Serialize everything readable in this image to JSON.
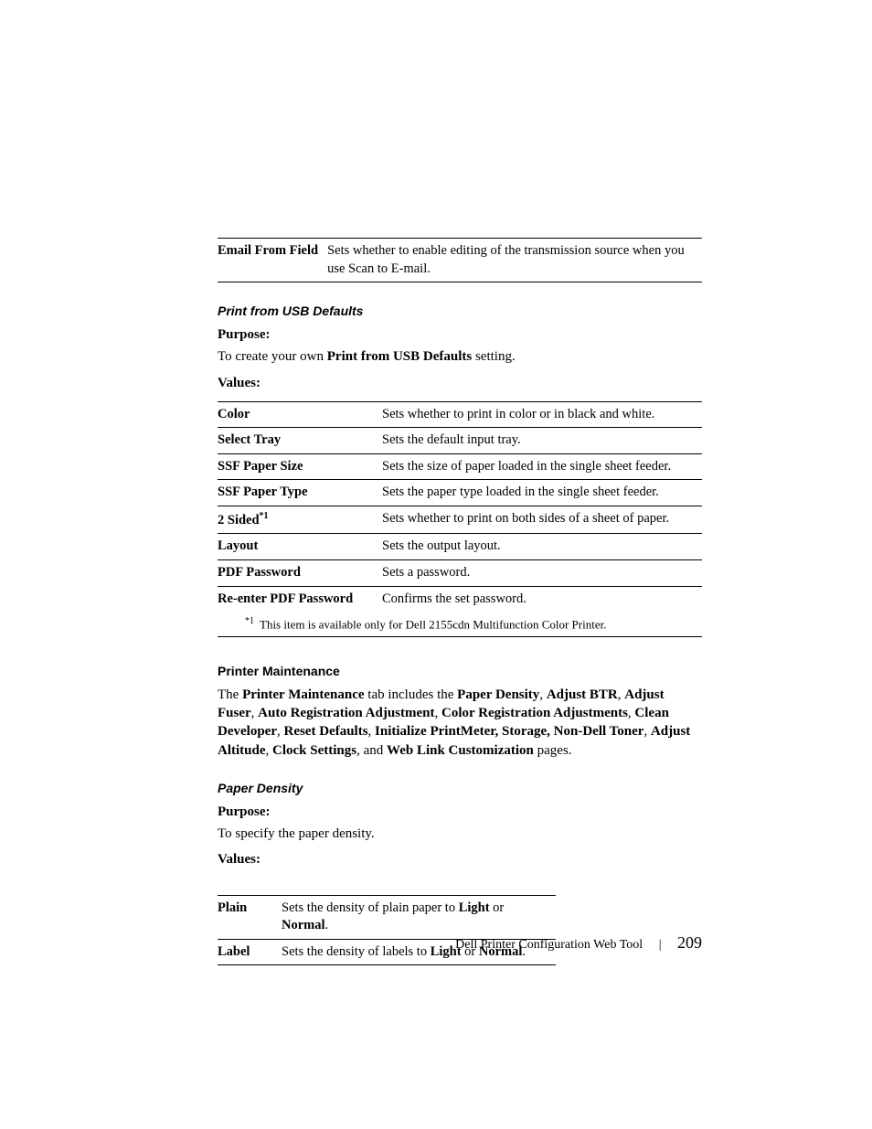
{
  "topTable": {
    "rows": [
      {
        "key": "Email From Field",
        "val": "Sets whether to enable editing of the transmission source when you use Scan to E-mail."
      }
    ]
  },
  "sectionUSB": {
    "title": "Print from USB Defaults",
    "purposeLabel": "Purpose:",
    "purposeText_pre": "To create your own ",
    "purposeText_bold": "Print from USB Defaults",
    "purposeText_post": " setting.",
    "valuesLabel": "Values:",
    "rows": [
      {
        "key": "Color",
        "val": "Sets whether to print in color or in black and white."
      },
      {
        "key": "Select Tray",
        "val": "Sets the default input tray."
      },
      {
        "key": "SSF Paper Size",
        "val": "Sets the size of paper loaded in the single sheet feeder."
      },
      {
        "key": "SSF Paper Type",
        "val": "Sets the paper type loaded in the single sheet feeder."
      },
      {
        "key": "2 Sided",
        "sup": "*1",
        "val": "Sets whether to print on both sides of a sheet of paper."
      },
      {
        "key": "Layout",
        "val": "Sets the output layout."
      },
      {
        "key": "PDF Password",
        "val": "Sets a password."
      },
      {
        "key": "Re-enter PDF Password",
        "val": "Confirms the set password."
      }
    ],
    "footnoteMarker": "*1",
    "footnoteText": "This item is available only for Dell 2155cdn Multifunction Color Printer."
  },
  "sectionMaint": {
    "title": "Printer Maintenance",
    "para": {
      "t1": "The ",
      "b1": "Printer Maintenance",
      "t2": " tab includes the ",
      "b2": "Paper Density",
      "t3": ", ",
      "b3": "Adjust BTR",
      "t4": ", ",
      "b4": "Adjust Fuser",
      "t5": ", ",
      "b5": "Auto Registration Adjustment",
      "t6": ", ",
      "b6": "Color Registration Adjustments",
      "t7": ", ",
      "b7": "Clean Developer",
      "t8": ", ",
      "b8": "Reset Defaults",
      "t9": ", ",
      "b9": "Initialize PrintMeter, Storage, Non-Dell Toner",
      "t10": ", ",
      "b10": "Adjust Altitude",
      "t11": ", ",
      "b11": "Clock Settings",
      "t12": ", and ",
      "b12": "Web Link Customization",
      "t13": " pages."
    }
  },
  "sectionDensity": {
    "title": "Paper Density",
    "purposeLabel": "Purpose:",
    "purposeText": "To specify the paper density.",
    "valuesLabel": "Values:",
    "rows": [
      {
        "key": "Plain",
        "pre": "Sets the density of plain paper to ",
        "b1": "Light",
        "mid": " or ",
        "b2": "Normal",
        "post": "."
      },
      {
        "key": "Label",
        "pre": "Sets the density of labels to ",
        "b1": "Light",
        "mid": " or ",
        "b2": "Normal",
        "post": "."
      }
    ]
  },
  "footer": {
    "title": "Dell Printer Configuration Web Tool",
    "page": "209"
  }
}
